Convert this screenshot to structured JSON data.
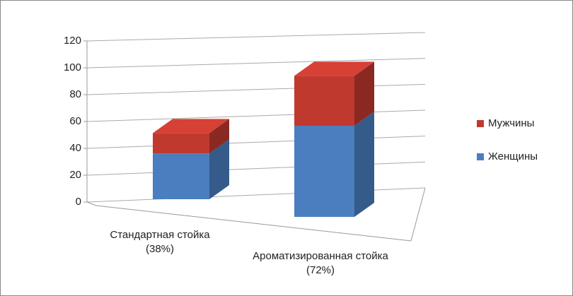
{
  "chart_data": {
    "type": "bar3d_stacked",
    "categories": [
      "Стандартная стойка (38%)",
      "Ароматизированная стойка (72%)"
    ],
    "series": [
      {
        "name": "Женщины",
        "color": "#4a7ebf",
        "values": [
          36,
          62
        ]
      },
      {
        "name": "Мужчины",
        "color": "#c0392f",
        "values": [
          16,
          34
        ]
      }
    ],
    "ylim": [
      0,
      120
    ],
    "yticks": [
      0,
      20,
      40,
      60,
      80,
      100,
      120
    ],
    "grid": true
  }
}
